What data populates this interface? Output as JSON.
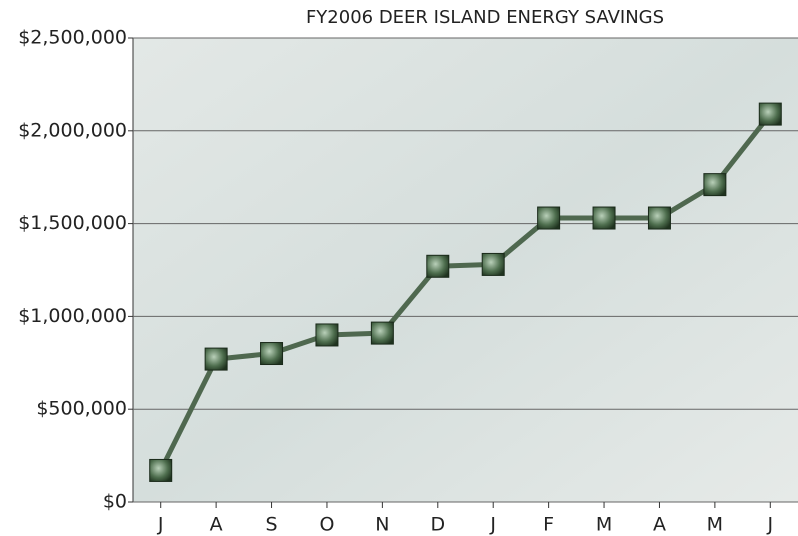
{
  "chart_data": {
    "type": "line",
    "title": "FY2006 DEER ISLAND ENERGY SAVINGS",
    "categories": [
      "J",
      "A",
      "S",
      "O",
      "N",
      "D",
      "J",
      "F",
      "M",
      "A",
      "M",
      "J"
    ],
    "values": [
      170000,
      770000,
      800000,
      900000,
      910000,
      1270000,
      1280000,
      1530000,
      1530000,
      1530000,
      1710000,
      2090000
    ],
    "color": "#4f684f",
    "ylim": [
      0,
      2500000
    ],
    "yticks": [
      {
        "value": 0,
        "label": "$0"
      },
      {
        "value": 500000,
        "label": "$500,000"
      },
      {
        "value": 1000000,
        "label": "$1,000,000"
      },
      {
        "value": 1500000,
        "label": "$1,500,000"
      },
      {
        "value": 2000000,
        "label": "$2,000,000"
      },
      {
        "value": 2500000,
        "label": "$2,500,000"
      }
    ],
    "grid": true
  }
}
